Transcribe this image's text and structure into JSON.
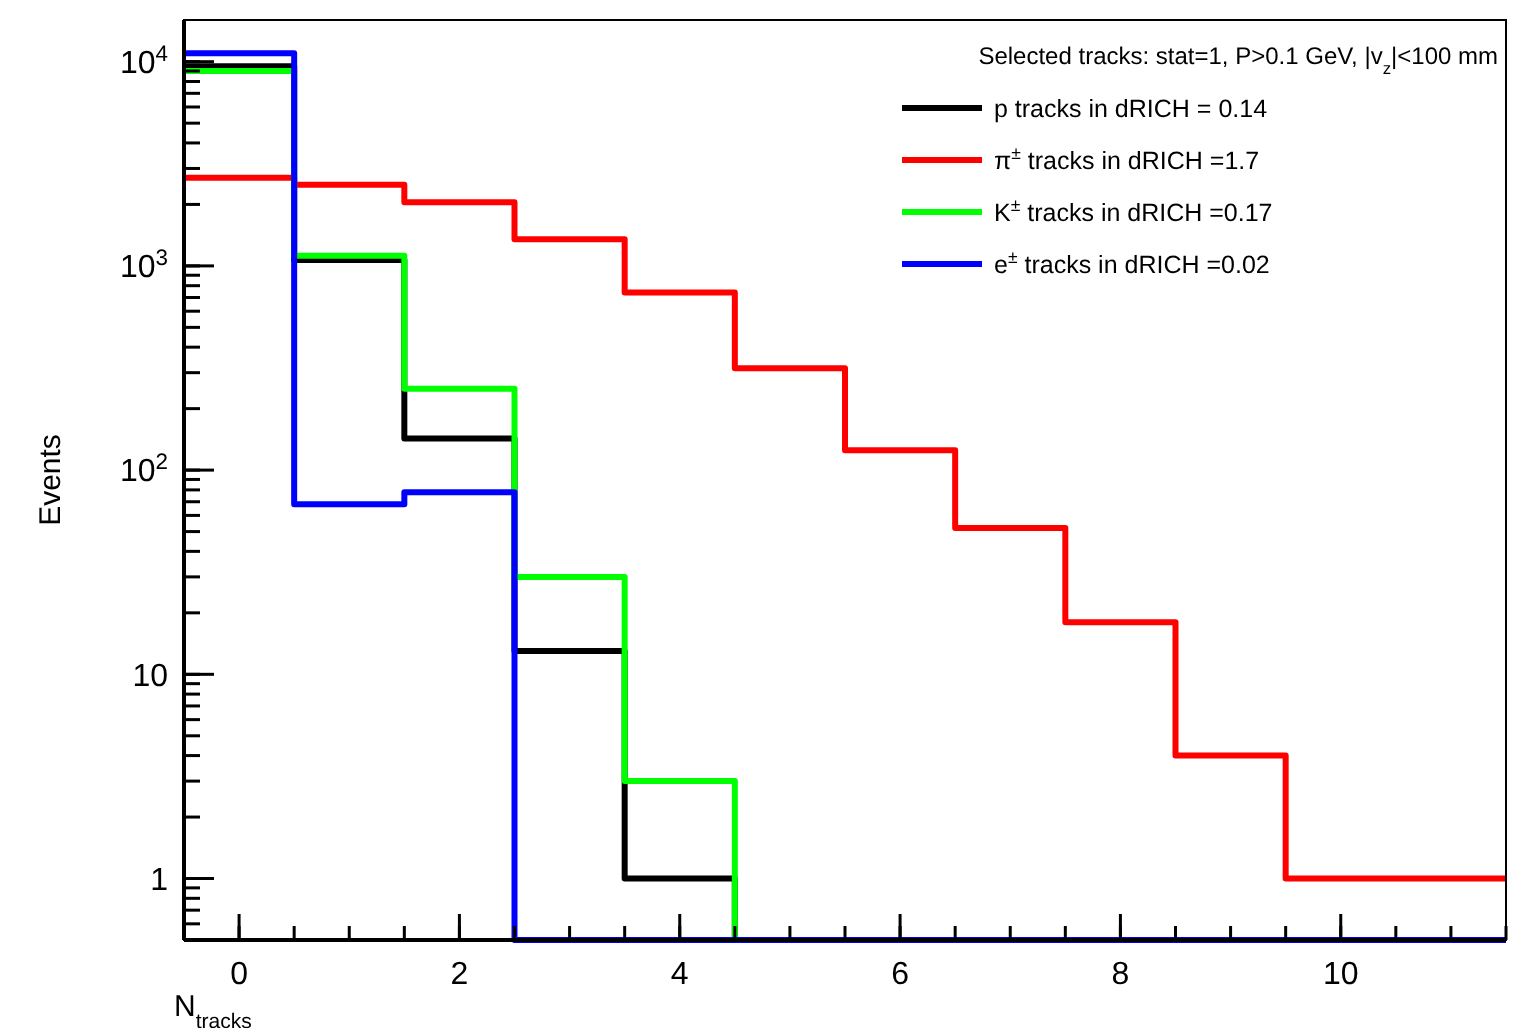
{
  "chart_data": {
    "type": "histogram",
    "xlabel": "N$_{tracks}$",
    "ylabel": "Events",
    "legend_title": "Selected tracks: stat=1, P>0.1 GeV, |v$_{z}$|<100 mm",
    "bins": [
      -0.5,
      0.5,
      1.5,
      2.5,
      3.5,
      4.5,
      5.5,
      6.5,
      7.5,
      8.5,
      9.5,
      10.5,
      11.5
    ],
    "series": [
      {
        "name": "p tracks in dRICH = 0.14",
        "color": "#000000",
        "values": [
          9500,
          1070,
          143,
          13,
          1,
          null,
          null,
          null,
          null,
          null,
          null,
          null
        ]
      },
      {
        "name": "π$^{±}$ tracks in dRICH =1.7",
        "color": "#ff0000",
        "values": [
          2700,
          2500,
          2050,
          1350,
          740,
          315,
          125,
          52,
          18,
          4,
          1,
          1
        ]
      },
      {
        "name": "K$^{±}$ tracks in dRICH =0.17",
        "color": "#00ff00",
        "values": [
          9000,
          1120,
          250,
          30,
          3,
          null,
          null,
          null,
          null,
          null,
          null,
          null
        ]
      },
      {
        "name": "e$^{±}$ tracks in dRICH =0.02",
        "color": "#0000ff",
        "values": [
          11000,
          68,
          78,
          null,
          null,
          null,
          null,
          null,
          null,
          null,
          null,
          null
        ]
      }
    ],
    "xlim": [
      -0.5,
      11.5
    ],
    "xticks": [
      0,
      2,
      4,
      6,
      8,
      10
    ],
    "ylim": [
      0.5,
      16000
    ],
    "yticks": [
      1,
      10,
      {
        "value": 100,
        "label": "10$^{2}$"
      },
      {
        "value": 1000,
        "label": "10$^{3}$"
      },
      {
        "value": 10000,
        "label": "10$^{4}$"
      }
    ],
    "log": true,
    "legend": "top right",
    "grid": false
  }
}
